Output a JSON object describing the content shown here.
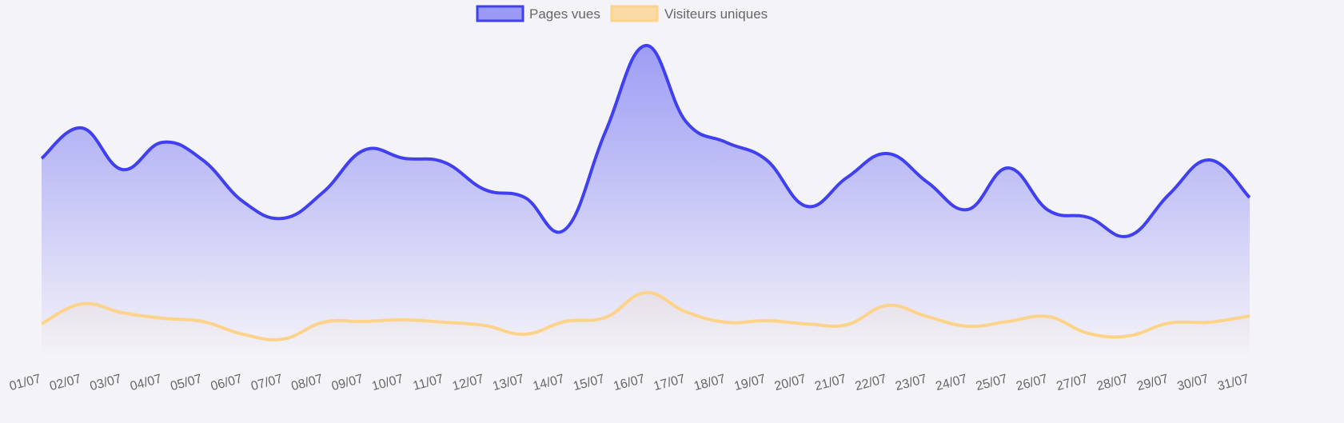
{
  "chart_data": {
    "type": "area",
    "categories": [
      "01/07",
      "02/07",
      "03/07",
      "04/07",
      "05/07",
      "06/07",
      "07/07",
      "08/07",
      "09/07",
      "10/07",
      "11/07",
      "12/07",
      "13/07",
      "14/07",
      "15/07",
      "16/07",
      "17/07",
      "18/07",
      "19/07",
      "20/07",
      "21/07",
      "22/07",
      "23/07",
      "24/07",
      "25/07",
      "26/07",
      "27/07",
      "28/07",
      "29/07",
      "30/07",
      "31/07"
    ],
    "series": [
      {
        "name": "Pages vues",
        "color": "#4040f0",
        "values": [
          247,
          285,
          233,
          267,
          245,
          193,
          172,
          205,
          257,
          247,
          242,
          208,
          198,
          158,
          280,
          388,
          293,
          267,
          245,
          187,
          223,
          253,
          217,
          183,
          235,
          182,
          173,
          150,
          202,
          245,
          198
        ]
      },
      {
        "name": "Visiteurs uniques",
        "color": "#fdd38a",
        "values": [
          40,
          65,
          54,
          47,
          43,
          27,
          21,
          42,
          43,
          45,
          42,
          38,
          27,
          43,
          48,
          79,
          55,
          42,
          44,
          40,
          39,
          63,
          49,
          37,
          43,
          49,
          28,
          25,
          41,
          42,
          50
        ]
      }
    ]
  }
}
